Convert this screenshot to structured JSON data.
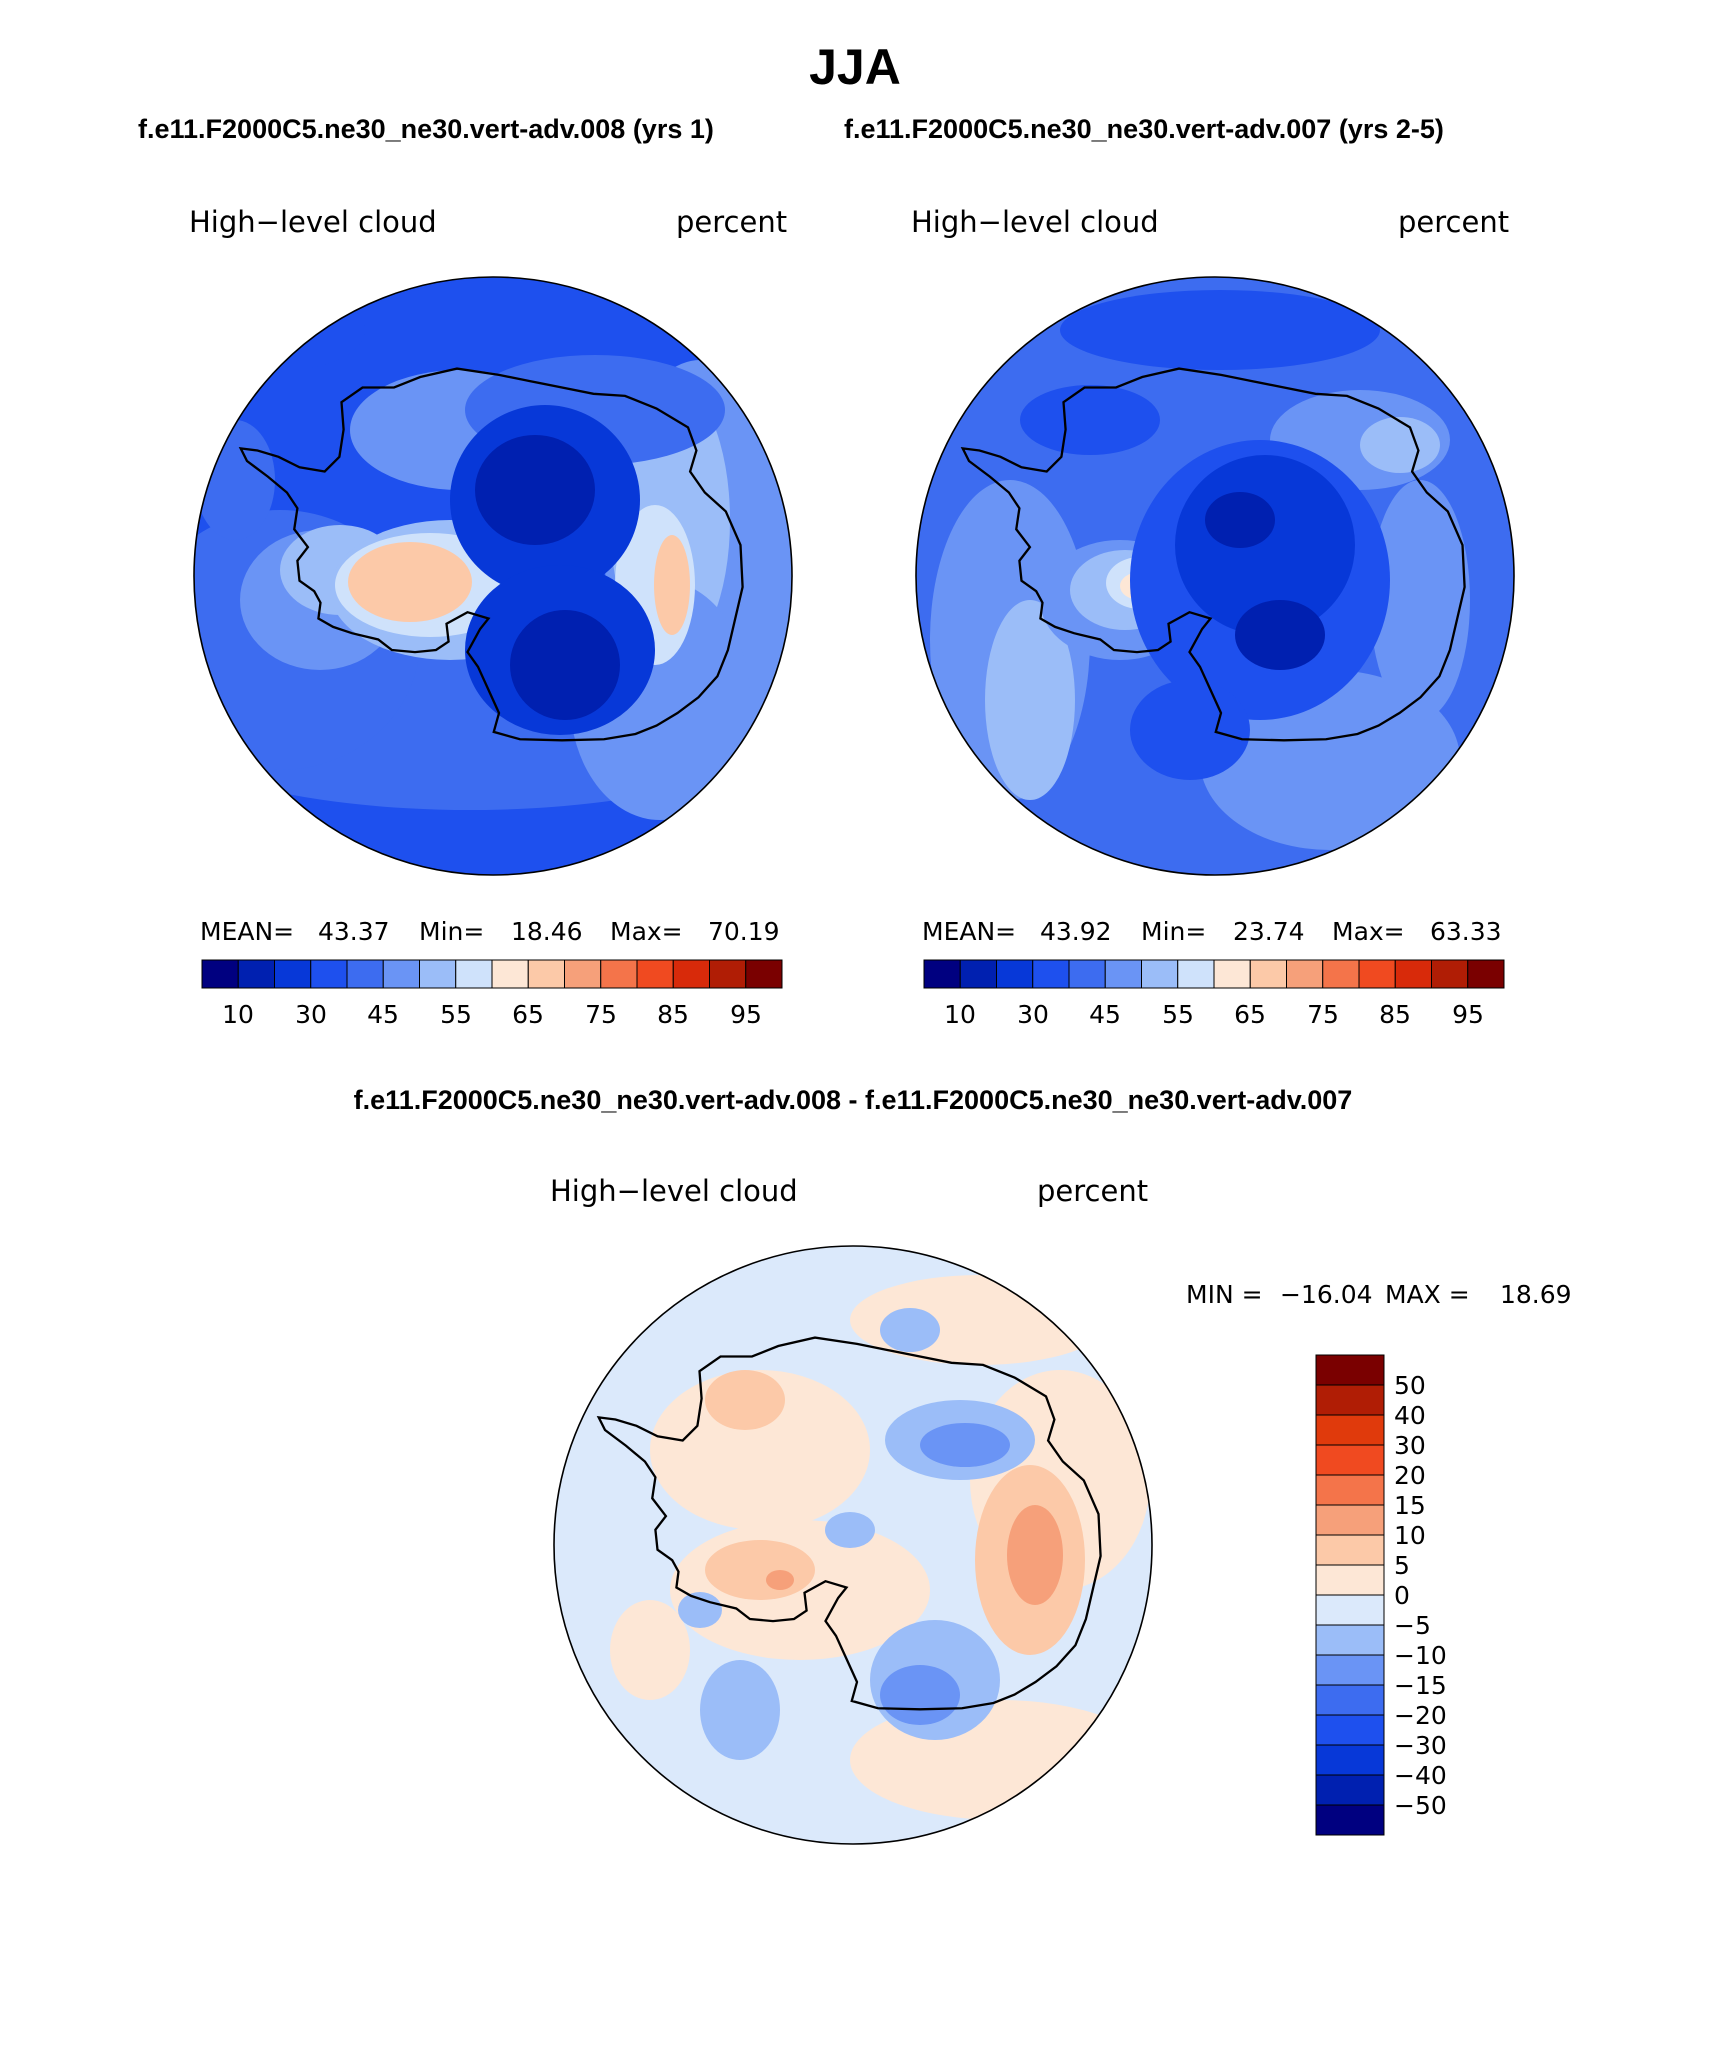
{
  "title": "JJA",
  "colors": {
    "seq": [
      "#000080",
      "#0020b0",
      "#0738d8",
      "#1e50ee",
      "#3d6cf0",
      "#6a94f5",
      "#9bbdf8",
      "#cfe2fb",
      "#fde7d6",
      "#fcc9a8",
      "#f6a07a",
      "#f4744a",
      "#f04a20",
      "#d82a0a",
      "#b01d05",
      "#7a0000"
    ],
    "diff": [
      "#000080",
      "#0020b0",
      "#0738d8",
      "#1e50ee",
      "#3d6cf0",
      "#6a94f5",
      "#9bbdf8",
      "#dbe9fb",
      "#fde7d6",
      "#fcc9a8",
      "#f6a07a",
      "#f4744a",
      "#f04a20",
      "#e03a0c",
      "#b01d05",
      "#7a0000"
    ],
    "coast": "#000000"
  },
  "chart_data": [
    {
      "type": "heatmap",
      "subtitle": "f.e11.F2000C5.ne30_ne30.vert-adv.008 (yrs 1)",
      "left_label": "High−level cloud",
      "right_label": "percent",
      "projection": "south polar stereographic",
      "stats": {
        "mean_label": "MEAN=",
        "mean": "43.37",
        "min_label": "Min=",
        "min": "18.46",
        "max_label": "Max=",
        "max": "70.19"
      },
      "colorbar_ticks": [
        "10",
        "30",
        "45",
        "55",
        "65",
        "75",
        "85",
        "95"
      ],
      "field_range": [
        18.46,
        70.19
      ]
    },
    {
      "type": "heatmap",
      "subtitle": "f.e11.F2000C5.ne30_ne30.vert-adv.007 (yrs 2-5)",
      "left_label": "High−level cloud",
      "right_label": "percent",
      "projection": "south polar stereographic",
      "stats": {
        "mean_label": "MEAN=",
        "mean": "43.92",
        "min_label": "Min=",
        "min": "23.74",
        "max_label": "Max=",
        "max": "63.33"
      },
      "colorbar_ticks": [
        "10",
        "30",
        "45",
        "55",
        "65",
        "75",
        "85",
        "95"
      ],
      "field_range": [
        23.74,
        63.33
      ]
    },
    {
      "type": "heatmap",
      "subtitle": "f.e11.F2000C5.ne30_ne30.vert-adv.008 - f.e11.F2000C5.ne30_ne30.vert-adv.007",
      "left_label": "High−level cloud",
      "right_label": "percent",
      "projection": "south polar stereographic",
      "stats": {
        "min_label": "MIN =",
        "min": "−16.04",
        "max_label": "MAX =",
        "max": "18.69"
      },
      "colorbar_levels": [
        "50",
        "40",
        "30",
        "20",
        "15",
        "10",
        "5",
        "0",
        "−5",
        "−10",
        "−15",
        "−20",
        "−30",
        "−40",
        "−50"
      ],
      "field_range": [
        -16.04,
        18.69
      ]
    }
  ]
}
